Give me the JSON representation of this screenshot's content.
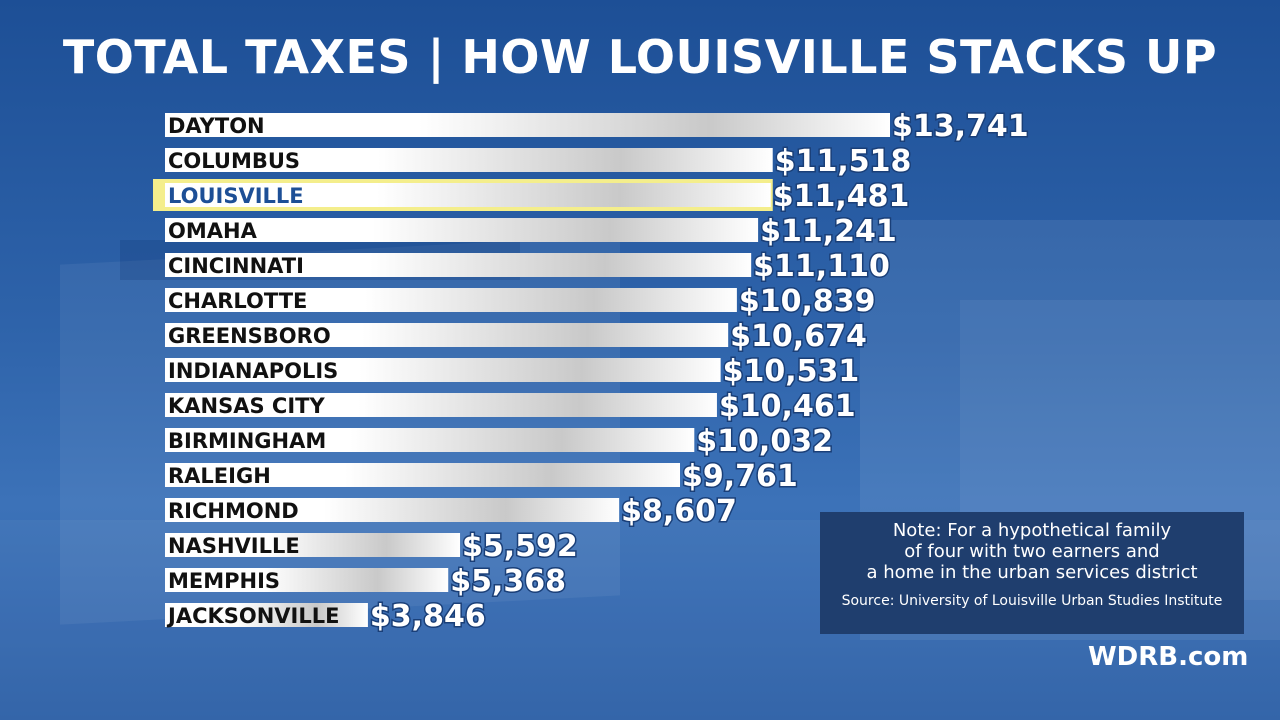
{
  "title": "TOTAL TAXES | HOW LOUISVILLE STACKS UP",
  "chart_data": {
    "type": "bar",
    "orientation": "horizontal",
    "categories": [
      "DAYTON",
      "COLUMBUS",
      "LOUISVILLE",
      "OMAHA",
      "CINCINNATI",
      "CHARLOTTE",
      "GREENSBORO",
      "INDIANAPOLIS",
      "KANSAS CITY",
      "BIRMINGHAM",
      "RALEIGH",
      "RICHMOND",
      "NASHVILLE",
      "MEMPHIS",
      "JACKSONVILLE"
    ],
    "values": [
      13741,
      11518,
      11481,
      11241,
      11110,
      10839,
      10674,
      10531,
      10461,
      10032,
      9761,
      8607,
      5592,
      5368,
      3846
    ],
    "value_labels": [
      "$13,741",
      "$11,518",
      "$11,481",
      "$11,241",
      "$11,110",
      "$10,839",
      "$10,674",
      "$10,531",
      "$10,461",
      "$10,032",
      "$9,761",
      "$8,607",
      "$5,592",
      "$5,368",
      "$3,846"
    ],
    "highlight": "LOUISVILLE",
    "highlight_color": "#f4ee8c",
    "label_color": "#111111",
    "highlight_label_color": "#1d4f96",
    "value_label_color": "#ffffff",
    "xlabel": "",
    "ylabel": ""
  },
  "note": {
    "text": "Note: For a hypothetical family of four with two earners and a home in the urban services district",
    "lines": [
      "Note: For a hypothetical family",
      "of four with two earners and",
      "a home in the urban services district"
    ],
    "source": "Source: University of Louisville Urban Studies Institute"
  },
  "logo": "WDRB.com"
}
